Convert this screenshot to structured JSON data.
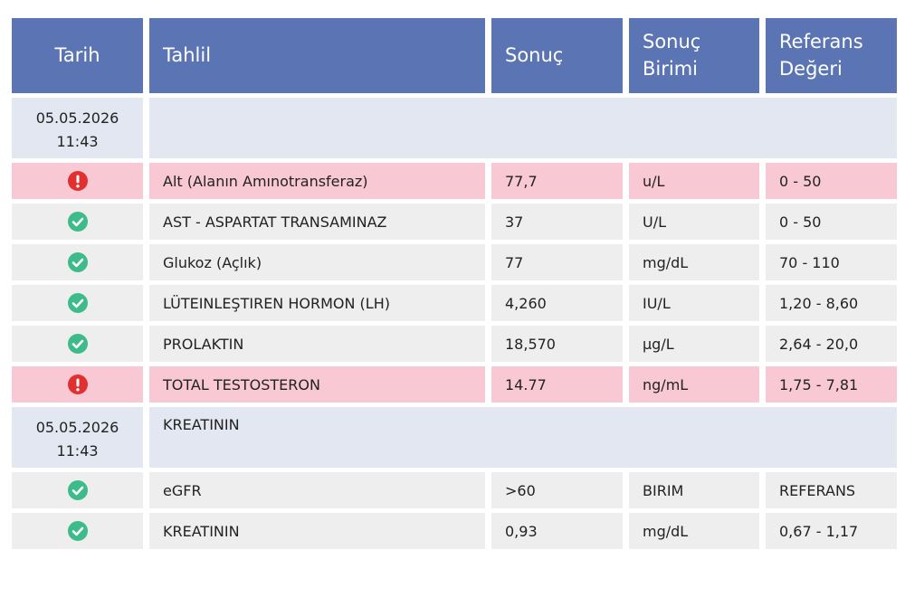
{
  "header": {
    "columns": [
      "Tarih",
      "Tahlil",
      "Sonuç",
      "Sonuç Birimi",
      "Referans Değeri"
    ]
  },
  "groups": [
    {
      "date": "05.05.2026",
      "time": "11:43",
      "rows": [
        {
          "test": "Alt (Alanın Amınotransferaz)",
          "result": "77,7",
          "unit": "u/L",
          "reference": "0 - 50"
        },
        {
          "test": "AST - ASPARTAT TRANSAMINAZ",
          "result": "37",
          "unit": "U/L",
          "reference": "0 - 50"
        },
        {
          "test": "Glukoz (Açlık)",
          "result": "77",
          "unit": "mg/dL",
          "reference": "70 - 110"
        },
        {
          "test": "LÜTEINLEŞTIREN HORMON (LH)",
          "result": "4,260",
          "unit": "IU/L",
          "reference": "1,20 - 8,60"
        },
        {
          "test": "PROLAKTIN",
          "result": "18,570",
          "unit": "µg/L",
          "reference": "2,64 - 20,0"
        },
        {
          "test": "TOTAL TESTOSTERON",
          "result": "14.77",
          "unit": "ng/mL",
          "reference": "1,75 - 7,81"
        }
      ]
    },
    {
      "date": "05.05.2026",
      "time": "11:43",
      "title": "KREATININ",
      "rows": [
        {
          "test": "eGFR",
          "result": ">60",
          "unit": "BIRIM",
          "reference": "REFERANS"
        },
        {
          "test": "KREATININ",
          "result": "0,93",
          "unit": "mg/dL",
          "reference": "0,67 - 1,17"
        }
      ]
    }
  ]
}
